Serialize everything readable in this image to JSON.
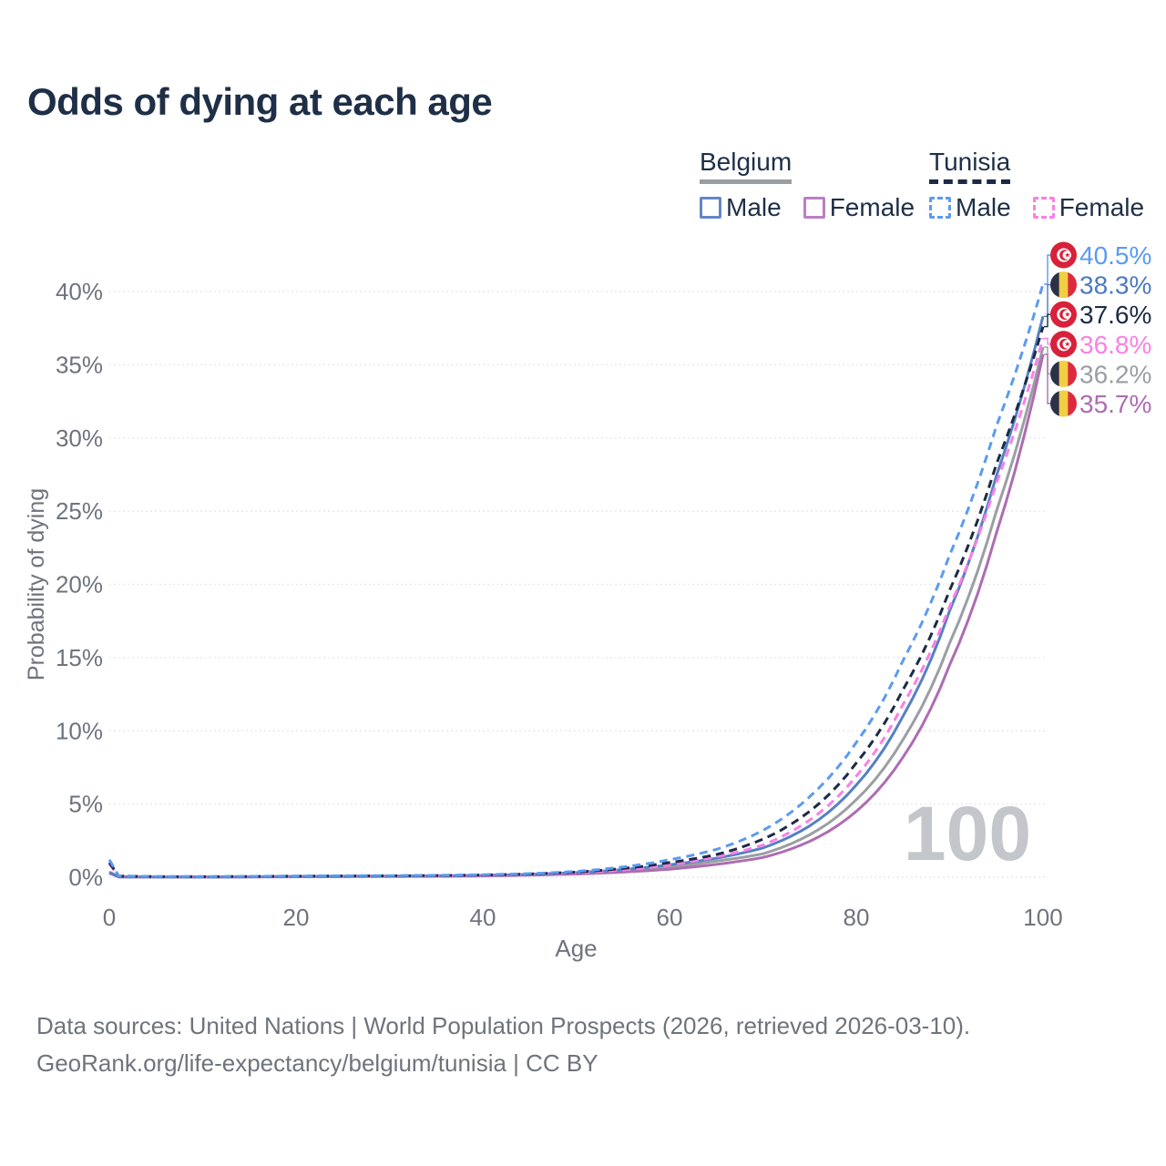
{
  "title": "Odds of dying at each age",
  "legend": {
    "groups": [
      {
        "label": "Belgium",
        "line_style": "solid",
        "underline_color": "#9a9da1",
        "items": [
          {
            "label": "Male",
            "color": "#6486c8",
            "style": "solid"
          },
          {
            "label": "Female",
            "color": "#bb7fc2",
            "style": "solid"
          }
        ]
      },
      {
        "label": "Tunisia",
        "line_style": "dashed",
        "underline_color": "#1c2b45",
        "items": [
          {
            "label": "Male",
            "color": "#5b9bf0",
            "style": "dashed"
          },
          {
            "label": "Female",
            "color": "#fb7fe6",
            "style": "dashed"
          }
        ]
      }
    ]
  },
  "chart_data": {
    "type": "line",
    "title": "Odds of dying at each age",
    "xlabel": "Age",
    "ylabel": "Probability of dying",
    "x_ticks": [
      0,
      20,
      40,
      60,
      80,
      100
    ],
    "y_ticks_percent": [
      0,
      5,
      10,
      15,
      20,
      25,
      30,
      35,
      40
    ],
    "y_tick_labels": [
      "0%",
      "5%",
      "10%",
      "15%",
      "20%",
      "25%",
      "30%",
      "35%",
      "40%"
    ],
    "xlim": [
      0,
      100
    ],
    "ylim": [
      0,
      43
    ],
    "grid": true,
    "legend_position": "top-right",
    "ages": [
      0,
      1,
      5,
      10,
      15,
      20,
      25,
      30,
      35,
      40,
      45,
      50,
      55,
      60,
      65,
      70,
      75,
      80,
      85,
      90,
      95,
      100
    ],
    "series": [
      {
        "name": "Belgium Total",
        "country": "Belgium",
        "sex": "Both",
        "style": "solid",
        "color": "#9b9ea2",
        "end_value": 36.2,
        "end_label": "36.2%",
        "values": [
          0.3,
          0.025,
          0.015,
          0.012,
          0.025,
          0.045,
          0.055,
          0.065,
          0.08,
          0.11,
          0.17,
          0.27,
          0.43,
          0.7,
          1.1,
          1.6,
          2.9,
          5.3,
          9.4,
          16.0,
          25.0,
          36.2
        ]
      },
      {
        "name": "Belgium Female",
        "country": "Belgium",
        "sex": "Female",
        "style": "solid",
        "color": "#ae6cb2",
        "end_value": 35.7,
        "end_label": "35.7%",
        "values": [
          0.28,
          0.02,
          0.012,
          0.01,
          0.02,
          0.03,
          0.04,
          0.05,
          0.06,
          0.09,
          0.14,
          0.22,
          0.35,
          0.55,
          0.88,
          1.35,
          2.45,
          4.5,
          8.2,
          14.5,
          23.5,
          35.7
        ]
      },
      {
        "name": "Belgium Male",
        "country": "Belgium",
        "sex": "Male",
        "style": "solid",
        "color": "#5580c4",
        "end_value": 38.3,
        "end_label": "38.3%",
        "values": [
          0.35,
          0.03,
          0.02,
          0.015,
          0.03,
          0.06,
          0.07,
          0.08,
          0.1,
          0.13,
          0.2,
          0.32,
          0.52,
          0.85,
          1.3,
          2.0,
          3.5,
          6.3,
          11.0,
          18.2,
          27.4,
          38.3
        ]
      },
      {
        "name": "Tunisia Female",
        "country": "Tunisia",
        "sex": "Female",
        "style": "dashed",
        "color": "#fb7fe6",
        "end_value": 36.8,
        "end_label": "36.8%",
        "values": [
          0.9,
          0.07,
          0.035,
          0.03,
          0.04,
          0.05,
          0.06,
          0.07,
          0.09,
          0.13,
          0.19,
          0.3,
          0.5,
          0.85,
          1.4,
          2.2,
          3.9,
          6.9,
          11.8,
          18.5,
          26.9,
          36.8
        ]
      },
      {
        "name": "Tunisia Total",
        "country": "Tunisia",
        "sex": "Both",
        "style": "dashed",
        "color": "#1c2b45",
        "end_value": 37.6,
        "end_label": "37.6%",
        "values": [
          1.0,
          0.08,
          0.04,
          0.035,
          0.05,
          0.07,
          0.085,
          0.095,
          0.11,
          0.15,
          0.22,
          0.35,
          0.6,
          1.0,
          1.55,
          2.6,
          4.5,
          7.8,
          12.8,
          19.6,
          28.2,
          37.6
        ]
      },
      {
        "name": "Tunisia Male",
        "country": "Tunisia",
        "sex": "Male",
        "style": "dashed",
        "color": "#5b9bf0",
        "end_value": 40.5,
        "end_label": "40.5%",
        "values": [
          1.2,
          0.09,
          0.05,
          0.04,
          0.06,
          0.08,
          0.1,
          0.11,
          0.13,
          0.17,
          0.25,
          0.4,
          0.7,
          1.2,
          1.9,
          3.2,
          5.5,
          9.2,
          14.8,
          22.0,
          30.8,
          40.5
        ]
      }
    ]
  },
  "end_labels": [
    {
      "text": "40.5%",
      "value": 40.5,
      "flag": "tunisia",
      "series": "Tunisia Male",
      "color": "#5b9bf0"
    },
    {
      "text": "38.3%",
      "value": 38.3,
      "flag": "belgium",
      "series": "Belgium Male",
      "color": "#4d79bd"
    },
    {
      "text": "37.6%",
      "value": 37.6,
      "flag": "tunisia",
      "series": "Tunisia Total",
      "color": "#1c2b45"
    },
    {
      "text": "36.8%",
      "value": 36.8,
      "flag": "tunisia",
      "series": "Tunisia Female",
      "color": "#fb7fe6"
    },
    {
      "text": "36.2%",
      "value": 36.2,
      "flag": "belgium",
      "series": "Belgium Total",
      "color": "#9b9ea2"
    },
    {
      "text": "35.7%",
      "value": 35.7,
      "flag": "belgium",
      "series": "Belgium Female",
      "color": "#ae6cb2"
    }
  ],
  "watermark": "100",
  "flag_colors": {
    "tunisia_red": "#d8213a",
    "belgium_black": "#2b3148",
    "belgium_yellow": "#f2ce43",
    "belgium_red": "#dd2a3e"
  },
  "footer": {
    "line1": "Data sources: United Nations | World Population Prospects (2026, retrieved 2026-03-10).",
    "line2": "GeoRank.org/life-expectancy/belgium/tunisia | CC BY"
  }
}
